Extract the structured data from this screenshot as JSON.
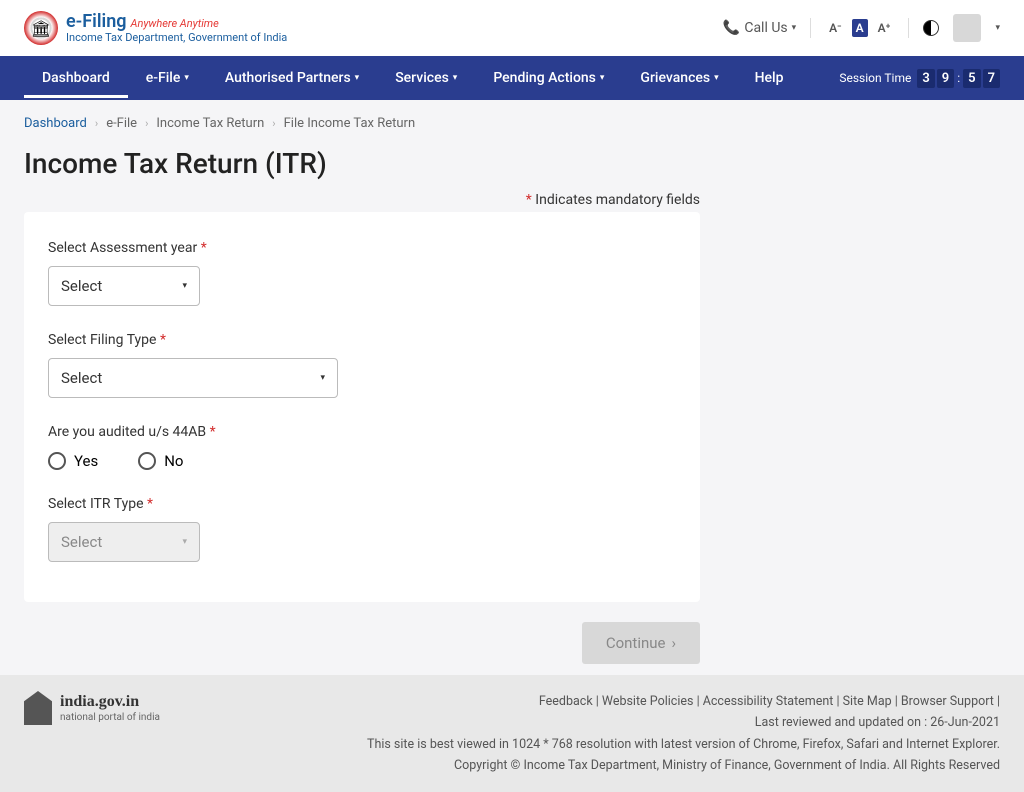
{
  "header": {
    "logo_main": "e-Filing",
    "logo_tag": "Anywhere Anytime",
    "logo_sub": "Income Tax Department, Government of India",
    "call_us": "Call Us",
    "font_minus": "A⁻",
    "font_normal": "A",
    "font_plus": "A⁺"
  },
  "nav": {
    "items": [
      "Dashboard",
      "e-File",
      "Authorised Partners",
      "Services",
      "Pending Actions",
      "Grievances",
      "Help"
    ],
    "dropdown_flags": [
      false,
      true,
      true,
      true,
      true,
      true,
      false
    ],
    "session_label": "Session Time",
    "timer": [
      "3",
      "9",
      ":",
      "5",
      "7"
    ]
  },
  "breadcrumb": [
    "Dashboard",
    "e-File",
    "Income Tax Return",
    "File Income Tax Return"
  ],
  "page": {
    "title": "Income Tax Return (ITR)",
    "mandatory": "Indicates mandatory fields",
    "assessment_label": "Select Assessment year",
    "assessment_value": "Select",
    "filing_label": "Select Filing Type",
    "filing_value": "Select",
    "audit_label": "Are you audited u/s 44AB",
    "yes": "Yes",
    "no": "No",
    "itr_label": "Select ITR Type",
    "itr_value": "Select",
    "continue": "Continue"
  },
  "footer": {
    "india_gov": "india.gov.in",
    "portal": "national portal of india",
    "links": "Feedback | Website Policies | Accessibility Statement | Site Map | Browser Support |",
    "updated": "Last reviewed and updated on : 26-Jun-2021",
    "best_viewed": "This site is best viewed in 1024 * 768 resolution with latest version of Chrome, Firefox, Safari and Internet Explorer.",
    "copyright": "Copyright © Income Tax Department, Ministry of Finance, Government of India. All Rights Reserved"
  }
}
